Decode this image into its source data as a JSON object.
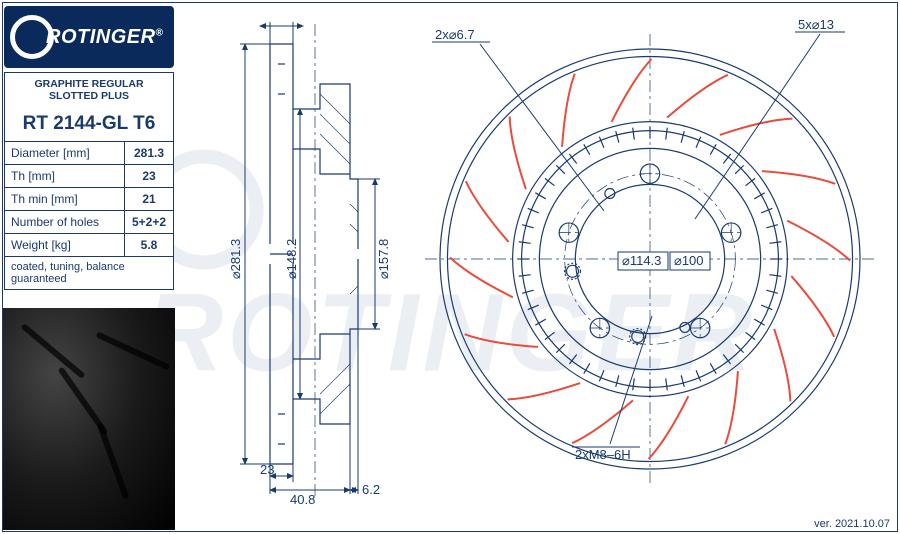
{
  "brand": {
    "name": "ROTINGER",
    "registered": "®"
  },
  "watermark_text": "ROTINGER",
  "spec": {
    "series": "GRAPHITE REGULAR SLOTTED PLUS",
    "part_number": "RT 2144-GL T6",
    "rows": [
      {
        "label": "Diameter [mm]",
        "value": "281.3"
      },
      {
        "label": "Th [mm]",
        "value": "23"
      },
      {
        "label": "Th min [mm]",
        "value": "21"
      },
      {
        "label": "Number of holes",
        "value": "5+2+2"
      },
      {
        "label": "Weight [kg]",
        "value": "5.8"
      }
    ],
    "note": "coated, tuning, balance guaranteed"
  },
  "version": "ver. 2021.10.07",
  "drawing": {
    "colors": {
      "line": "#1a3a6e",
      "slot": "#e74c3c",
      "bg": "#ffffff",
      "logo_bg": "#0a2a5c"
    },
    "side_view": {
      "diam_outer_label": "⌀281.3",
      "diam_hat_label": "⌀148.2",
      "diam_bore_label": "⌀157.8",
      "th_label": "23",
      "hat_depth_label": "40.8",
      "flange_label": "6.2"
    },
    "front_view": {
      "callout_small_holes": "2x⌀6.7",
      "callout_bolt_holes": "5x⌀13",
      "callout_thread": "2xM8–6H",
      "pcd_label": "⌀114.3",
      "hub_bore_label": "⌀100",
      "outer_d": 281.3,
      "abs_ring_d": 172,
      "hat_d": 148.2,
      "pcd": 114.3,
      "hub_bore": 100,
      "bolt_holes": 5,
      "bolt_d": 13,
      "small_holes": 2,
      "small_hole_d": 6.7,
      "thread_holes": 2,
      "abs_teeth": 48,
      "slots": 16,
      "slot_color": "#e74c3c"
    }
  }
}
